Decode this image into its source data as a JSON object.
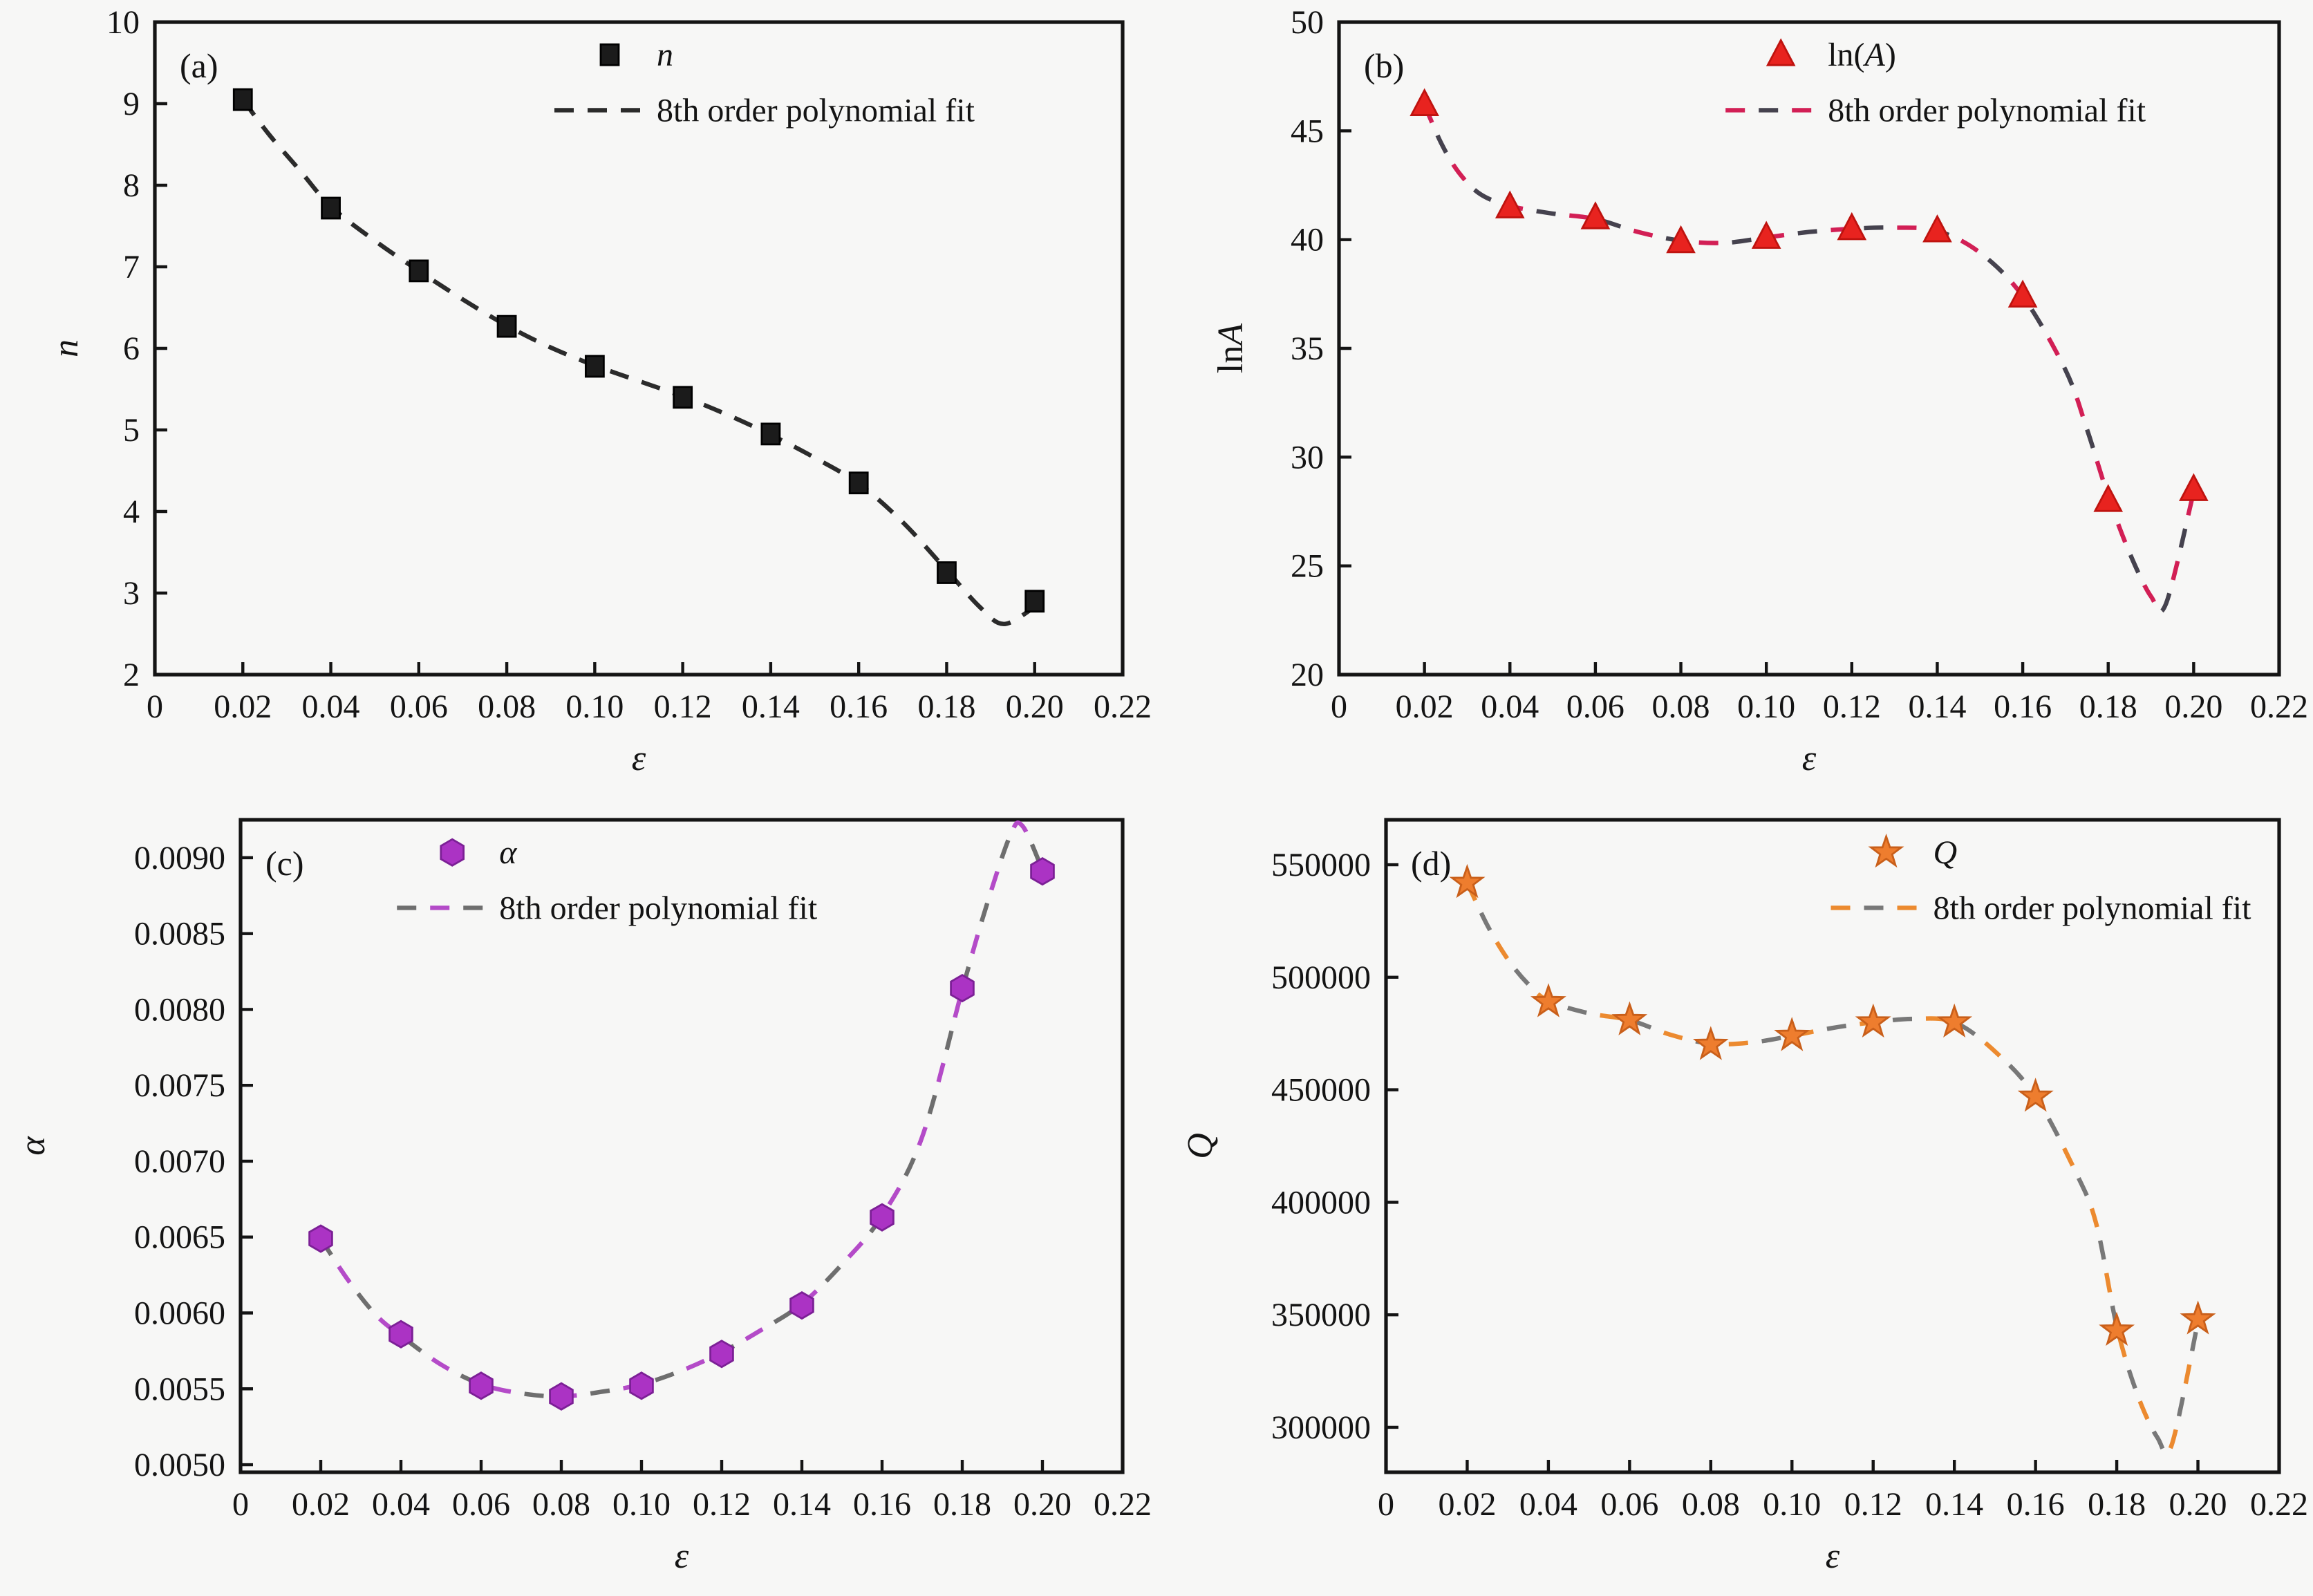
{
  "page": {
    "background": "#f7f7f6",
    "text_color": "#141414",
    "spine_color": "#141414"
  },
  "chart_data": [
    {
      "id": "a",
      "tag": "(a)",
      "type": "scatter",
      "xlabel_runs": [
        {
          "t": "ε",
          "i": true
        }
      ],
      "ylabel_runs": [
        {
          "t": "n",
          "i": true
        }
      ],
      "legend": {
        "series_runs": [
          {
            "t": "n",
            "i": true
          }
        ],
        "fit_label": "8th order polynomial fit",
        "fx": 0.47,
        "fy1": 0.05,
        "fy2": 0.135
      },
      "axis": {
        "xmin": 0,
        "xmax": 0.22,
        "ymin": 2,
        "ymax": 10,
        "xticks": [
          0,
          0.02,
          0.04,
          0.06,
          0.08,
          0.1,
          0.12,
          0.14,
          0.16,
          0.18,
          0.2,
          0.22
        ],
        "xtick_labels": [
          "0",
          "0.02",
          "0.04",
          "0.06",
          "0.08",
          "0.10",
          "0.12",
          "0.14",
          "0.16",
          "0.18",
          "0.20",
          "0.22"
        ],
        "yticks": [
          2,
          3,
          4,
          5,
          6,
          7,
          8,
          9,
          10
        ],
        "ytick_labels": [
          "2",
          "3",
          "4",
          "5",
          "6",
          "7",
          "8",
          "9",
          "10"
        ]
      },
      "x": [
        0.02,
        0.04,
        0.06,
        0.08,
        0.1,
        0.12,
        0.14,
        0.16,
        0.18,
        0.2
      ],
      "y": [
        9.05,
        7.72,
        6.95,
        6.27,
        5.78,
        5.4,
        4.95,
        4.35,
        3.25,
        2.9
      ],
      "marker": {
        "shape": "square",
        "fill": "#1b1b1b",
        "edge": "#000000"
      },
      "fit": {
        "colors": [
          "#2b2b2b"
        ],
        "points": [
          [
            0.02,
            9.05
          ],
          [
            0.026,
            8.62
          ],
          [
            0.033,
            8.18
          ],
          [
            0.04,
            7.74
          ],
          [
            0.05,
            7.32
          ],
          [
            0.06,
            6.95
          ],
          [
            0.07,
            6.6
          ],
          [
            0.08,
            6.28
          ],
          [
            0.09,
            6.01
          ],
          [
            0.1,
            5.79
          ],
          [
            0.11,
            5.6
          ],
          [
            0.12,
            5.41
          ],
          [
            0.13,
            5.19
          ],
          [
            0.14,
            4.94
          ],
          [
            0.15,
            4.66
          ],
          [
            0.16,
            4.34
          ],
          [
            0.17,
            3.87
          ],
          [
            0.18,
            3.28
          ],
          [
            0.1875,
            2.83
          ],
          [
            0.193,
            2.62
          ],
          [
            0.2,
            2.83
          ]
        ]
      },
      "layout": {
        "ml": 112,
        "ylabel_x": 56
      }
    },
    {
      "id": "b",
      "tag": "(b)",
      "type": "scatter",
      "xlabel_runs": [
        {
          "t": "ε",
          "i": true
        }
      ],
      "ylabel_runs": [
        {
          "t": "ln"
        },
        {
          "t": "A",
          "i": true
        }
      ],
      "legend": {
        "series_runs": [
          {
            "t": "ln("
          },
          {
            "t": "A",
            "i": true
          },
          {
            "t": ")"
          }
        ],
        "fit_label": "8th order polynomial fit",
        "fx": 0.47,
        "fy1": 0.05,
        "fy2": 0.135
      },
      "axis": {
        "xmin": 0,
        "xmax": 0.22,
        "ymin": 20,
        "ymax": 50,
        "xticks": [
          0,
          0.02,
          0.04,
          0.06,
          0.08,
          0.1,
          0.12,
          0.14,
          0.16,
          0.18,
          0.2,
          0.22
        ],
        "xtick_labels": [
          "0",
          "0.02",
          "0.04",
          "0.06",
          "0.08",
          "0.10",
          "0.12",
          "0.14",
          "0.16",
          "0.18",
          "0.20",
          "0.22"
        ],
        "yticks": [
          20,
          25,
          30,
          35,
          40,
          45,
          50
        ],
        "ytick_labels": [
          "20",
          "25",
          "30",
          "35",
          "40",
          "45",
          "50"
        ]
      },
      "x": [
        0.02,
        0.04,
        0.06,
        0.08,
        0.1,
        0.12,
        0.14,
        0.16,
        0.18,
        0.2
      ],
      "y": [
        46.2,
        41.5,
        41.0,
        39.9,
        40.1,
        40.5,
        40.4,
        37.4,
        28.0,
        28.5
      ],
      "marker": {
        "shape": "triangle",
        "fill": "#e8231f",
        "edge": "#bf130f"
      },
      "fit": {
        "colors": [
          "#d21f55",
          "#45424e"
        ],
        "points": [
          [
            0.02,
            46.2
          ],
          [
            0.024,
            44.4
          ],
          [
            0.028,
            43.1
          ],
          [
            0.033,
            42.1
          ],
          [
            0.04,
            41.55
          ],
          [
            0.05,
            41.2
          ],
          [
            0.06,
            40.95
          ],
          [
            0.07,
            40.35
          ],
          [
            0.08,
            39.95
          ],
          [
            0.09,
            39.85
          ],
          [
            0.1,
            40.1
          ],
          [
            0.11,
            40.35
          ],
          [
            0.12,
            40.5
          ],
          [
            0.13,
            40.55
          ],
          [
            0.14,
            40.4
          ],
          [
            0.15,
            39.4
          ],
          [
            0.16,
            37.4
          ],
          [
            0.17,
            34.0
          ],
          [
            0.175,
            31.3
          ],
          [
            0.18,
            28.2
          ],
          [
            0.185,
            25.6
          ],
          [
            0.19,
            23.6
          ],
          [
            0.1935,
            23.25
          ],
          [
            0.2,
            28.4
          ]
        ]
      },
      "layout": {
        "ml": 132,
        "ylabel_x": 62
      }
    },
    {
      "id": "c",
      "tag": "(c)",
      "type": "scatter",
      "xlabel_runs": [
        {
          "t": "ε",
          "i": true
        }
      ],
      "ylabel_runs": [
        {
          "t": "α",
          "i": true
        }
      ],
      "legend": {
        "series_runs": [
          {
            "t": "α",
            "i": true
          }
        ],
        "fit_label": "8th order polynomial fit",
        "fx": 0.24,
        "fy1": 0.05,
        "fy2": 0.135
      },
      "axis": {
        "xmin": 0,
        "xmax": 0.22,
        "ymin": 0.00495,
        "ymax": 0.00925,
        "xticks": [
          0,
          0.02,
          0.04,
          0.06,
          0.08,
          0.1,
          0.12,
          0.14,
          0.16,
          0.18,
          0.2,
          0.22
        ],
        "xtick_labels": [
          "0",
          "0.02",
          "0.04",
          "0.06",
          "0.08",
          "0.10",
          "0.12",
          "0.14",
          "0.16",
          "0.18",
          "0.20",
          "0.22"
        ],
        "yticks": [
          0.005,
          0.0055,
          0.006,
          0.0065,
          0.007,
          0.0075,
          0.008,
          0.0085,
          0.009
        ],
        "ytick_labels": [
          "0.0050",
          "0.0055",
          "0.0060",
          "0.0065",
          "0.0070",
          "0.0075",
          "0.0080",
          "0.0085",
          "0.0090"
        ]
      },
      "x": [
        0.02,
        0.04,
        0.06,
        0.08,
        0.1,
        0.12,
        0.14,
        0.16,
        0.18,
        0.2
      ],
      "y": [
        0.00649,
        0.00586,
        0.00552,
        0.00545,
        0.00552,
        0.00573,
        0.00605,
        0.00663,
        0.00814,
        0.00891
      ],
      "marker": {
        "shape": "hexagon",
        "fill": "#ab33c4",
        "edge": "#7c2096"
      },
      "fit": {
        "colors": [
          "#6e6e6e",
          "#b44bc8"
        ],
        "points": [
          [
            0.02,
            0.00649
          ],
          [
            0.027,
            0.00621
          ],
          [
            0.034,
            0.00598
          ],
          [
            0.04,
            0.00585
          ],
          [
            0.05,
            0.00566
          ],
          [
            0.06,
            0.00553
          ],
          [
            0.07,
            0.00547
          ],
          [
            0.08,
            0.00545
          ],
          [
            0.09,
            0.00548
          ],
          [
            0.1,
            0.00553
          ],
          [
            0.11,
            0.00562
          ],
          [
            0.12,
            0.00574
          ],
          [
            0.13,
            0.00589
          ],
          [
            0.14,
            0.00606
          ],
          [
            0.15,
            0.00632
          ],
          [
            0.16,
            0.00664
          ],
          [
            0.17,
            0.00716
          ],
          [
            0.18,
            0.00813
          ],
          [
            0.186,
            0.00868
          ],
          [
            0.192,
            0.00915
          ],
          [
            0.195,
            0.00921
          ],
          [
            0.2,
            0.00892
          ]
        ]
      },
      "layout": {
        "ml": 174,
        "ylabel_x": 32
      }
    },
    {
      "id": "d",
      "tag": "(d)",
      "type": "scatter",
      "xlabel_runs": [
        {
          "t": "ε",
          "i": true
        }
      ],
      "ylabel_runs": [
        {
          "t": "Q",
          "i": true
        }
      ],
      "legend": {
        "series_runs": [
          {
            "t": "Q",
            "i": true
          }
        ],
        "fit_label": "8th order polynomial fit",
        "fx": 0.56,
        "fy1": 0.05,
        "fy2": 0.135
      },
      "axis": {
        "xmin": 0,
        "xmax": 0.22,
        "ymin": 280000,
        "ymax": 570000,
        "xticks": [
          0,
          0.02,
          0.04,
          0.06,
          0.08,
          0.1,
          0.12,
          0.14,
          0.16,
          0.18,
          0.2,
          0.22
        ],
        "xtick_labels": [
          "0",
          "0.02",
          "0.04",
          "0.06",
          "0.08",
          "0.10",
          "0.12",
          "0.14",
          "0.16",
          "0.18",
          "0.20",
          "0.22"
        ],
        "yticks": [
          300000,
          350000,
          400000,
          450000,
          500000,
          550000
        ],
        "ytick_labels": [
          "300000",
          "350000",
          "400000",
          "450000",
          "500000",
          "550000"
        ]
      },
      "x": [
        0.02,
        0.04,
        0.06,
        0.08,
        0.1,
        0.12,
        0.14,
        0.16,
        0.18,
        0.2
      ],
      "y": [
        542000,
        489000,
        481000,
        470000,
        474000,
        480000,
        480000,
        447000,
        343000,
        348000
      ],
      "marker": {
        "shape": "star",
        "fill": "#ee7d2e",
        "edge": "#c95f1a"
      },
      "fit": {
        "colors": [
          "#ec8a2f",
          "#787878"
        ],
        "points": [
          [
            0.02,
            542000
          ],
          [
            0.025,
            523000
          ],
          [
            0.03,
            508000
          ],
          [
            0.035,
            497000
          ],
          [
            0.04,
            489500
          ],
          [
            0.05,
            484000
          ],
          [
            0.06,
            481000
          ],
          [
            0.07,
            474500
          ],
          [
            0.08,
            470500
          ],
          [
            0.09,
            471000
          ],
          [
            0.1,
            474000
          ],
          [
            0.11,
            477500
          ],
          [
            0.12,
            480000
          ],
          [
            0.13,
            481500
          ],
          [
            0.14,
            480000
          ],
          [
            0.15,
            467000
          ],
          [
            0.16,
            447000
          ],
          [
            0.17,
            413000
          ],
          [
            0.175,
            390000
          ],
          [
            0.18,
            345000
          ],
          [
            0.185,
            315000
          ],
          [
            0.19,
            295500
          ],
          [
            0.1935,
            292000
          ],
          [
            0.2,
            347000
          ]
        ]
      },
      "layout": {
        "ml": 166,
        "ylabel_x": 40
      }
    }
  ]
}
